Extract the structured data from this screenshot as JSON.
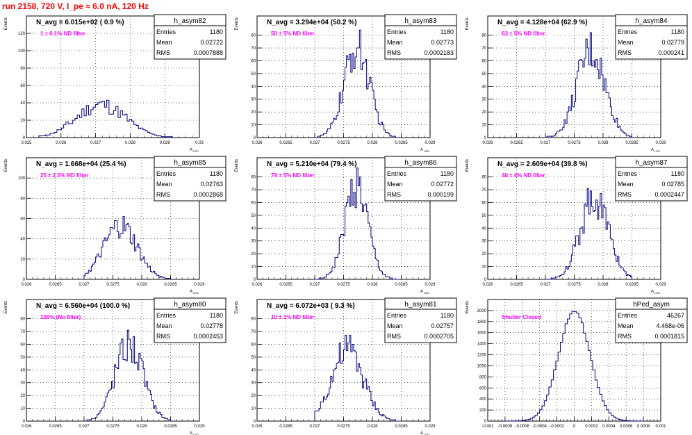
{
  "run_title": "run 2158,   720 V, I_pe ≈ 6.0 nA, 120 Hz",
  "colors": {
    "title": "#ff0000",
    "annotation": "#ff00ff",
    "line": "#000080"
  },
  "chart_data": [
    {
      "type": "histogram",
      "title": "h_asym82",
      "ylabel": "Events",
      "xlabel": "A_LED",
      "nAvg": "N_avg = 6.015e+02 ( 0.9 %)",
      "filter": "1 ± 0.1% ND filter",
      "stats": {
        "Entries": "1180",
        "Mean": "0.02722",
        "RMS": "0.0007888"
      },
      "xlim": [
        0.0248,
        0.0304
      ],
      "ylim": [
        0,
        140
      ],
      "xticks": [
        "0.025",
        "0.026",
        "0.027",
        "0.028",
        "0.029",
        "0.03"
      ],
      "yticks": [
        "0",
        "20",
        "40",
        "60",
        "80",
        "100",
        "120"
      ],
      "mean": 0.02722,
      "sigma": 0.0007888,
      "peak": 38,
      "dataRange": [
        0.0252,
        0.0296
      ],
      "grid": true
    },
    {
      "type": "histogram",
      "title": "h_asym83",
      "ylabel": "Events",
      "xlabel": "A_LED",
      "nAvg": "N_avg = 3.294e+04 (50.2 %)",
      "filter": "50 ± 5% ND filter",
      "stats": {
        "Entries": "1180",
        "Mean": "0.02773",
        "RMS": "0.0002183"
      },
      "xlim": [
        0.026,
        0.029
      ],
      "ylim": [
        0,
        95
      ],
      "xticks": [
        "0.026",
        "0.0265",
        "0.027",
        "0.0275",
        "0.028",
        "0.0285",
        "0.029"
      ],
      "yticks": [
        "0",
        "10",
        "20",
        "30",
        "40",
        "50",
        "60",
        "70",
        "80"
      ],
      "mean": 0.02773,
      "sigma": 0.0002183,
      "peak": 70,
      "dataRange": [
        0.027,
        0.0285
      ],
      "grid": true
    },
    {
      "type": "histogram",
      "title": "h_asym84",
      "ylabel": "Events",
      "xlabel": "A_LED",
      "nAvg": "N_avg = 4.128e+04 (62.9 %)",
      "filter": "63 ± 5% ND filter",
      "stats": {
        "Entries": "1180",
        "Mean": "0.02779",
        "RMS": "0.000241"
      },
      "xlim": [
        0.026,
        0.029
      ],
      "ylim": [
        0,
        95
      ],
      "xticks": [
        "0.026",
        "0.0265",
        "0.027",
        "0.0275",
        "0.028",
        "0.0285",
        "0.029"
      ],
      "yticks": [
        "0",
        "10",
        "20",
        "30",
        "40",
        "50",
        "60",
        "70",
        "80"
      ],
      "mean": 0.02779,
      "sigma": 0.000241,
      "peak": 68,
      "dataRange": [
        0.027,
        0.0285
      ],
      "grid": true
    },
    {
      "type": "histogram",
      "title": "h_asym85",
      "ylabel": "Events",
      "xlabel": "A_LED",
      "nAvg": "N_avg = 1.668e+04 (25.4 %)",
      "filter": "25 ± 2.5% ND filter",
      "stats": {
        "Entries": "1180",
        "Mean": "0.02763",
        "RMS": "0.0002868"
      },
      "xlim": [
        0.026,
        0.029
      ],
      "ylim": [
        0,
        120
      ],
      "xticks": [
        "0.026",
        "0.0265",
        "0.027",
        "0.0275",
        "0.028",
        "0.0285",
        "0.029"
      ],
      "yticks": [
        "0",
        "20",
        "40",
        "60",
        "80",
        "100"
      ],
      "mean": 0.02763,
      "sigma": 0.0002868,
      "peak": 52,
      "dataRange": [
        0.027,
        0.0285
      ],
      "grid": true
    },
    {
      "type": "histogram",
      "title": "h_asym86",
      "ylabel": "Events",
      "xlabel": "A_LED",
      "nAvg": "N_avg = 5.210e+04 (79.4 %)",
      "filter": "79 ± 5% ND filter",
      "stats": {
        "Entries": "1180",
        "Mean": "0.02772",
        "RMS": "0.000199"
      },
      "xlim": [
        0.026,
        0.029
      ],
      "ylim": [
        0,
        95
      ],
      "xticks": [
        "0.026",
        "0.0265",
        "0.027",
        "0.0275",
        "0.028",
        "0.0285",
        "0.029"
      ],
      "yticks": [
        "0",
        "10",
        "20",
        "30",
        "40",
        "50",
        "60",
        "70",
        "80"
      ],
      "mean": 0.02772,
      "sigma": 0.000199,
      "peak": 74,
      "dataRange": [
        0.027,
        0.0285
      ],
      "grid": true
    },
    {
      "type": "histogram",
      "title": "h_asym87",
      "ylabel": "Events",
      "xlabel": "A_LED",
      "nAvg": "N_avg = 2.609e+04 (39.8 %)",
      "filter": "40 ± 4% ND filter",
      "stats": {
        "Entries": "1180",
        "Mean": "0.02785",
        "RMS": "0.0002447"
      },
      "xlim": [
        0.026,
        0.029
      ],
      "ylim": [
        0,
        95
      ],
      "xticks": [
        "0.026",
        "0.0265",
        "0.027",
        "0.0275",
        "0.028",
        "0.0285",
        "0.029"
      ],
      "yticks": [
        "0",
        "10",
        "20",
        "30",
        "40",
        "50",
        "60",
        "70",
        "80"
      ],
      "mean": 0.02785,
      "sigma": 0.0002447,
      "peak": 64,
      "dataRange": [
        0.027,
        0.0285
      ],
      "grid": true
    },
    {
      "type": "histogram",
      "title": "h_asym80",
      "ylabel": "Events",
      "xlabel": "A_LED",
      "nAvg": "N_avg = 6.560e+04 (100.0 %)",
      "filter": "100% (No filter)",
      "stats": {
        "Entries": "1180",
        "Mean": "0.02778",
        "RMS": "0.0002453"
      },
      "xlim": [
        0.026,
        0.029
      ],
      "ylim": [
        0,
        95
      ],
      "xticks": [
        "0.026",
        "0.0265",
        "0.027",
        "0.0275",
        "0.028",
        "0.0285",
        "0.029"
      ],
      "yticks": [
        "0",
        "10",
        "20",
        "30",
        "40",
        "50",
        "60",
        "70",
        "80"
      ],
      "mean": 0.02778,
      "sigma": 0.0002453,
      "peak": 60,
      "dataRange": [
        0.027,
        0.0285
      ],
      "grid": true
    },
    {
      "type": "histogram",
      "title": "h_asym81",
      "ylabel": "Events",
      "xlabel": "A_LED",
      "nAvg": "N_avg = 6.072e+03 ( 9.3 %)",
      "filter": "10 ± 1% ND filter",
      "stats": {
        "Entries": "1180",
        "Mean": "0.02757",
        "RMS": "0.0002705"
      },
      "xlim": [
        0.026,
        0.029
      ],
      "ylim": [
        0,
        95
      ],
      "xticks": [
        "0.026",
        "0.0265",
        "0.027",
        "0.0275",
        "0.028",
        "0.0285",
        "0.029"
      ],
      "yticks": [
        "0",
        "10",
        "20",
        "30",
        "40",
        "50",
        "60",
        "70",
        "80"
      ],
      "mean": 0.02757,
      "sigma": 0.0002705,
      "peak": 56,
      "dataRange": [
        0.027,
        0.0285
      ],
      "grid": true
    },
    {
      "type": "histogram",
      "title": "hPed_asym",
      "ylabel": "Events",
      "xlabel": "",
      "nAvg": "",
      "filter": "Shutter Closed",
      "stats": {
        "Entries": "46267",
        "Mean": "4.468e-06",
        "RMS": "0.0001815"
      },
      "xlim": [
        -0.001,
        0.001
      ],
      "ylim": [
        0,
        2200
      ],
      "xticks": [
        "-0.001",
        "-0.0008",
        "-0.0006",
        "-0.0004",
        "-0.0002",
        "0",
        "0.0002",
        "0.0004",
        "0.0006",
        "0.0008",
        "0.001"
      ],
      "yticks": [
        "0",
        "200",
        "400",
        "600",
        "800",
        "1000",
        "1200",
        "1400",
        "1600",
        "1800",
        "2000"
      ],
      "mean": 0.0,
      "sigma": 0.0001815,
      "peak": 2000,
      "dataRange": [
        -0.0008,
        0.0008
      ],
      "grid": true
    }
  ]
}
